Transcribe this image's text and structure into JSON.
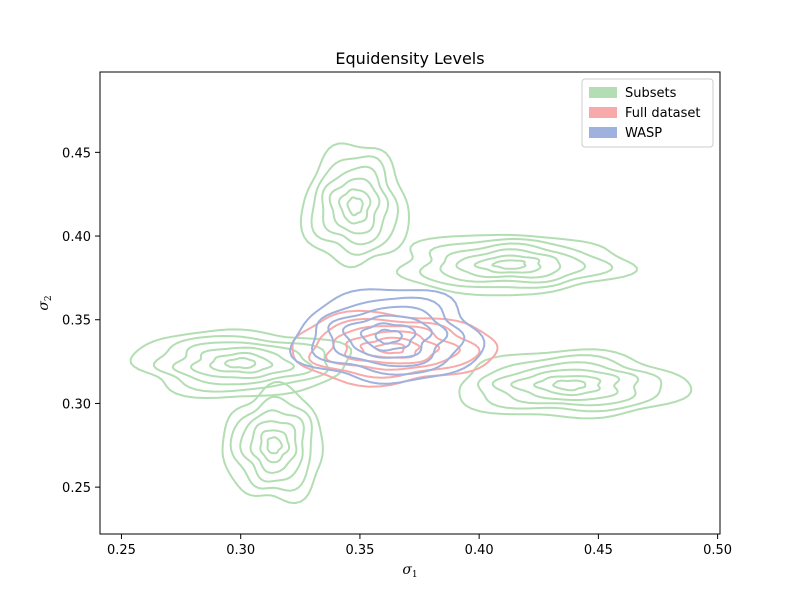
{
  "chart_data": {
    "type": "contour",
    "title": "Equidensity Levels",
    "xlabel": "σ1",
    "ylabel": "σ2",
    "xlim": [
      0.241,
      0.501
    ],
    "ylim": [
      0.222,
      0.498
    ],
    "xticks": [
      0.25,
      0.3,
      0.35,
      0.4,
      0.45,
      0.5
    ],
    "xtick_labels": [
      "0.25",
      "0.30",
      "0.35",
      "0.40",
      "0.45",
      "0.50"
    ],
    "yticks": [
      0.25,
      0.3,
      0.35,
      0.4,
      0.45
    ],
    "ytick_labels": [
      "0.25",
      "0.30",
      "0.35",
      "0.40",
      "0.45"
    ],
    "grid": false,
    "legend_position": "top-right",
    "series": [
      {
        "name": "Subsets",
        "color": "#b3deb3",
        "clusters": [
          {
            "center": [
              0.348,
              0.418
            ],
            "radii": [
              0.022,
              0.036
            ]
          },
          {
            "center": [
              0.413,
              0.383
            ],
            "radii": [
              0.048,
              0.018
            ]
          },
          {
            "center": [
              0.3,
              0.324
            ],
            "radii": [
              0.045,
              0.02
            ]
          },
          {
            "center": [
              0.438,
              0.311
            ],
            "radii": [
              0.048,
              0.02
            ]
          },
          {
            "center": [
              0.314,
              0.275
            ],
            "radii": [
              0.021,
              0.034
            ]
          }
        ]
      },
      {
        "name": "Full dataset",
        "color": "#f8aaaa",
        "clusters": [
          {
            "center": [
              0.363,
              0.333
            ],
            "radii": [
              0.043,
              0.021
            ]
          }
        ]
      },
      {
        "name": "WASP",
        "color": "#9fb2dd",
        "clusters": [
          {
            "center": [
              0.362,
              0.34
            ],
            "radii": [
              0.039,
              0.028
            ]
          }
        ]
      }
    ]
  }
}
